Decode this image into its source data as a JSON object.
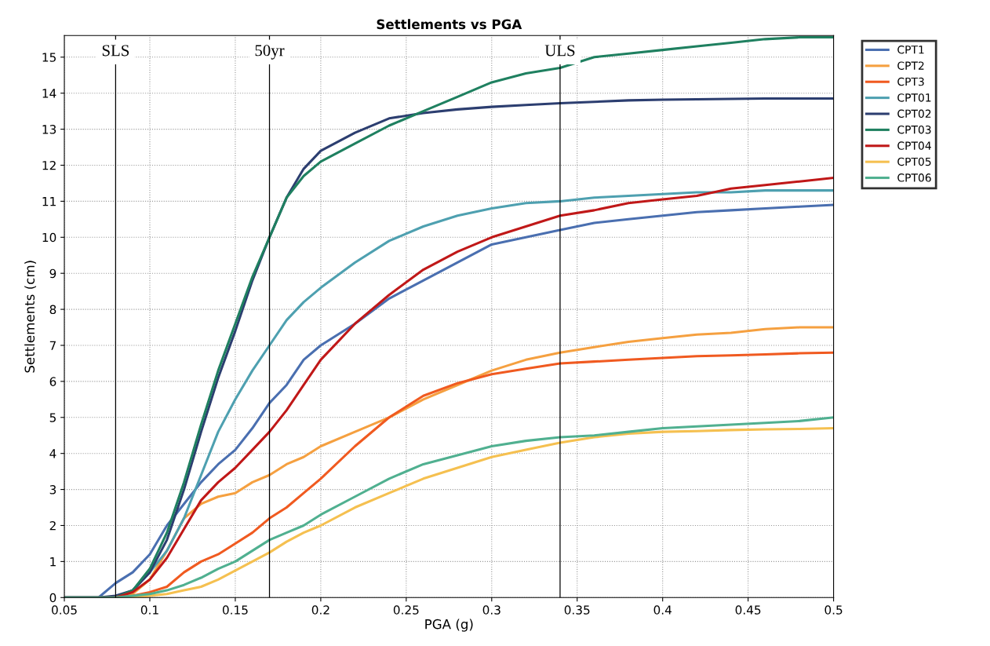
{
  "chart_data": {
    "type": "line",
    "title": "Settlements vs PGA",
    "xlabel": "PGA (g)",
    "ylabel": "Settlements (cm)",
    "x": [
      0.05,
      0.07,
      0.08,
      0.09,
      0.1,
      0.11,
      0.12,
      0.13,
      0.14,
      0.15,
      0.16,
      0.17,
      0.18,
      0.19,
      0.2,
      0.22,
      0.24,
      0.26,
      0.28,
      0.3,
      0.32,
      0.34,
      0.36,
      0.38,
      0.4,
      0.42,
      0.44,
      0.46,
      0.48,
      0.5
    ],
    "series": [
      {
        "name": "CPT1",
        "color": "#4a6fb0",
        "values": [
          0,
          0,
          0.4,
          0.7,
          1.2,
          2.0,
          2.6,
          3.2,
          3.7,
          4.1,
          4.7,
          5.4,
          5.9,
          6.6,
          7.0,
          7.6,
          8.3,
          8.8,
          9.3,
          9.8,
          10.0,
          10.2,
          10.4,
          10.5,
          10.6,
          10.7,
          10.75,
          10.8,
          10.85,
          10.9
        ]
      },
      {
        "name": "CPT2",
        "color": "#f5a040",
        "values": [
          null,
          null,
          0,
          0.1,
          0.5,
          1.3,
          2.2,
          2.6,
          2.8,
          2.9,
          3.2,
          3.4,
          3.7,
          3.9,
          4.2,
          4.6,
          5.0,
          5.5,
          5.9,
          6.3,
          6.6,
          6.8,
          6.95,
          7.1,
          7.2,
          7.3,
          7.35,
          7.45,
          7.5,
          7.5
        ]
      },
      {
        "name": "CPT3",
        "color": "#f05a20",
        "values": [
          null,
          null,
          0,
          0.05,
          0.15,
          0.3,
          0.7,
          1.0,
          1.2,
          1.5,
          1.8,
          2.2,
          2.5,
          2.9,
          3.3,
          4.2,
          5.0,
          5.6,
          5.95,
          6.2,
          6.35,
          6.5,
          6.55,
          6.6,
          6.65,
          6.7,
          6.72,
          6.75,
          6.78,
          6.8
        ]
      },
      {
        "name": "CPT01",
        "color": "#4ea0b0",
        "values": [
          0,
          0,
          0,
          0.2,
          0.7,
          1.3,
          2.2,
          3.4,
          4.6,
          5.5,
          6.3,
          7.0,
          7.7,
          8.2,
          8.6,
          9.3,
          9.9,
          10.3,
          10.6,
          10.8,
          10.95,
          11.0,
          11.1,
          11.15,
          11.2,
          11.25,
          11.25,
          11.3,
          11.3,
          11.3
        ]
      },
      {
        "name": "CPT02",
        "color": "#2c3e70",
        "values": [
          0,
          0,
          0.05,
          0.2,
          0.7,
          1.6,
          3.0,
          4.6,
          6.1,
          7.4,
          8.8,
          10.0,
          11.1,
          11.9,
          12.4,
          12.9,
          13.3,
          13.45,
          13.55,
          13.62,
          13.67,
          13.72,
          13.76,
          13.8,
          13.82,
          13.83,
          13.84,
          13.85,
          13.85,
          13.85
        ]
      },
      {
        "name": "CPT03",
        "color": "#1f8060",
        "values": [
          0,
          0,
          0,
          0.2,
          0.8,
          1.8,
          3.2,
          4.8,
          6.3,
          7.6,
          8.9,
          10.0,
          11.1,
          11.7,
          12.1,
          12.6,
          13.1,
          13.5,
          13.9,
          14.3,
          14.55,
          14.7,
          15.0,
          15.1,
          15.2,
          15.3,
          15.4,
          15.5,
          15.55,
          15.55
        ]
      },
      {
        "name": "CPT04",
        "color": "#c01818",
        "values": [
          0,
          0,
          0,
          0.15,
          0.5,
          1.1,
          1.9,
          2.7,
          3.2,
          3.6,
          4.1,
          4.6,
          5.2,
          5.9,
          6.6,
          7.6,
          8.4,
          9.1,
          9.6,
          10.0,
          10.3,
          10.6,
          10.75,
          10.95,
          11.05,
          11.15,
          11.35,
          11.45,
          11.55,
          11.65
        ]
      },
      {
        "name": "CPT05",
        "color": "#f5c050",
        "values": [
          null,
          null,
          0,
          0,
          0.05,
          0.1,
          0.2,
          0.3,
          0.5,
          0.75,
          1.0,
          1.25,
          1.55,
          1.8,
          2.0,
          2.5,
          2.9,
          3.3,
          3.6,
          3.9,
          4.1,
          4.3,
          4.45,
          4.55,
          4.6,
          4.62,
          4.65,
          4.67,
          4.68,
          4.7
        ]
      },
      {
        "name": "CPT06",
        "color": "#50b090",
        "values": [
          0,
          0,
          0,
          0.05,
          0.1,
          0.2,
          0.35,
          0.55,
          0.8,
          1.0,
          1.3,
          1.6,
          1.8,
          2.0,
          2.3,
          2.8,
          3.3,
          3.7,
          3.95,
          4.2,
          4.35,
          4.45,
          4.5,
          4.6,
          4.7,
          4.75,
          4.8,
          4.85,
          4.9,
          5.0
        ]
      }
    ],
    "xlim": [
      0.05,
      0.5
    ],
    "ylim": [
      0,
      15.6
    ],
    "xticks": [
      0.05,
      0.1,
      0.15,
      0.2,
      0.25,
      0.3,
      0.35,
      0.4,
      0.45,
      0.5
    ],
    "yticks": [
      0,
      1,
      2,
      3,
      4,
      5,
      6,
      7,
      8,
      9,
      10,
      11,
      12,
      13,
      14,
      15
    ],
    "ref_lines": [
      {
        "axis": "x",
        "value": 0.08,
        "label": "SLS",
        "color": "#000000"
      },
      {
        "axis": "x",
        "value": 0.17,
        "label": "50yr",
        "color": "#000000"
      },
      {
        "axis": "x",
        "value": 0.34,
        "label": "ULS",
        "color": "#000000"
      }
    ],
    "grid": true,
    "legend": "right",
    "marker": "none",
    "line_style": "solid"
  }
}
